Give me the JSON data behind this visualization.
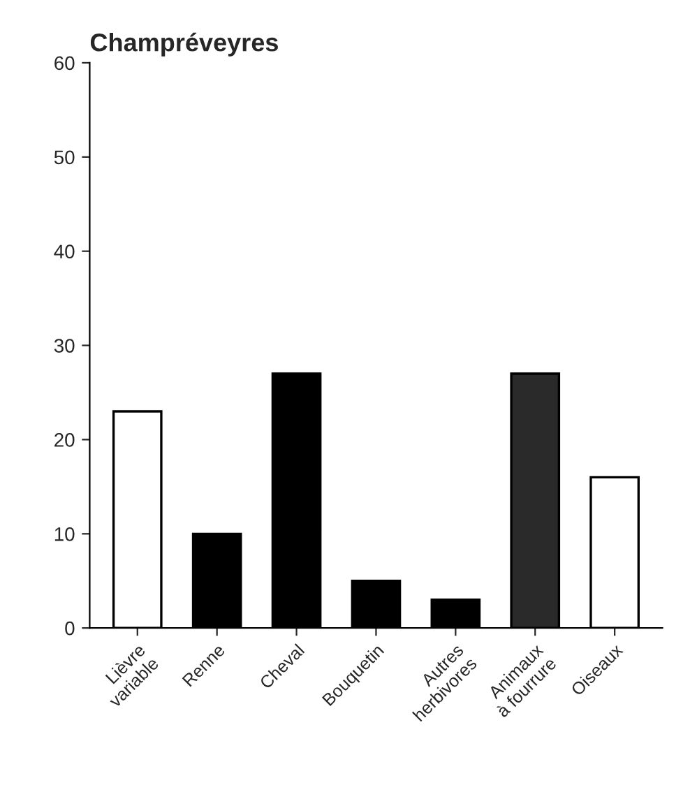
{
  "chart_data": {
    "type": "bar",
    "title": "Champréveyres",
    "categories": [
      "Lièvre\nvariable",
      "Renne",
      "Cheval",
      "Bouquetin",
      "Autres\nherbivores",
      "Animaux\nà fourrure",
      "Oiseaux"
    ],
    "values": [
      23,
      10,
      27,
      5,
      3,
      27,
      16
    ],
    "colors": [
      "#ffffff",
      "#000000",
      "#000000",
      "#000000",
      "#000000",
      "#2a2a2a",
      "#ffffff"
    ],
    "ylim": [
      0,
      60
    ],
    "yticks": [
      0,
      10,
      20,
      30,
      40,
      50,
      60
    ],
    "grid": false
  }
}
